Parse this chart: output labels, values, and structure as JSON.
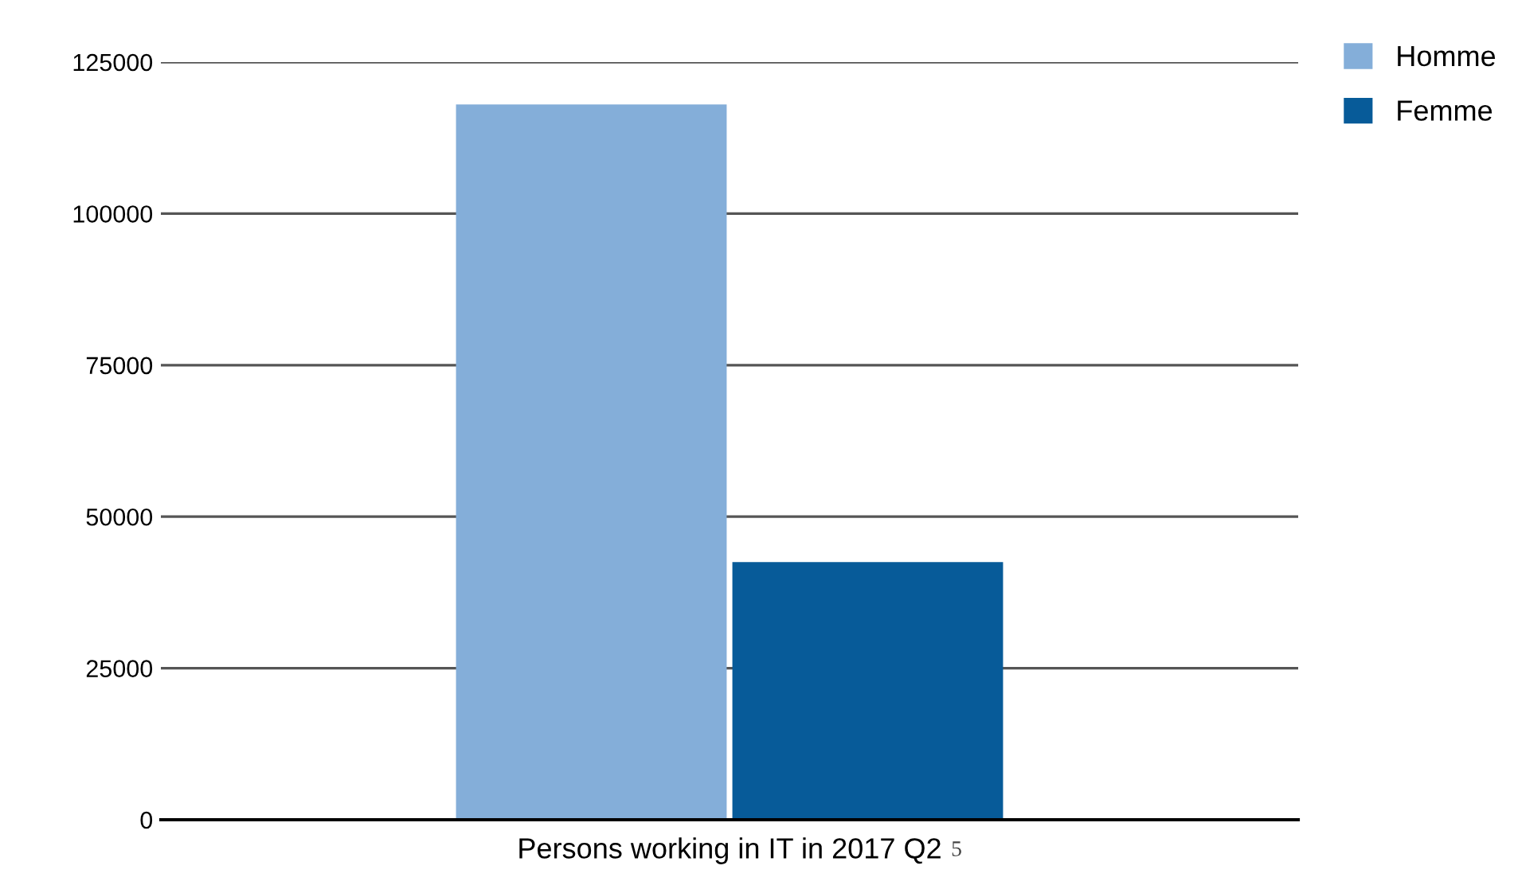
{
  "chart_data": {
    "type": "bar",
    "categories": [
      "Persons working in IT in 2017 Q2"
    ],
    "series": [
      {
        "name": "Homme",
        "color": "#84aed9",
        "values": [
          118000
        ]
      },
      {
        "name": "Femme",
        "color": "#075b99",
        "values": [
          42500
        ]
      }
    ],
    "ylim": [
      0,
      125000
    ],
    "yticks": [
      0,
      25000,
      50000,
      75000,
      100000,
      125000
    ],
    "grid": "y",
    "legend": "top right",
    "annotations": [
      "5"
    ]
  }
}
